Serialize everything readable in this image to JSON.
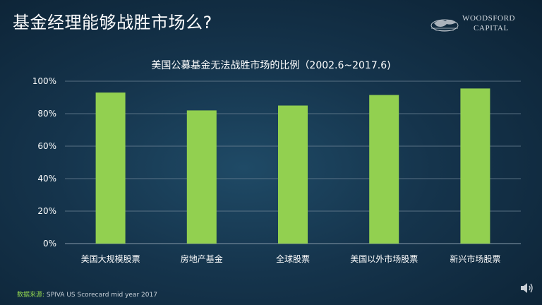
{
  "slide": {
    "title": "基金经理能够战胜市场么?"
  },
  "logo": {
    "line1": "WOODSFORD",
    "line2": "CAPITAL"
  },
  "source": {
    "label": "数据来源:",
    "text": "SPIVA  US Scorecard  mid  year 2017"
  },
  "colors": {
    "bar": "#92d050",
    "grid": "#6f8596",
    "axis_text": "#ffffff"
  },
  "chart_data": {
    "type": "bar",
    "title": "美国公募基金无法战胜市场的比例（2002.6~2017.6)",
    "categories": [
      "美国大规模股票",
      "房地产基金",
      "全球股票",
      "美国以外市场股票",
      "新兴市场股票"
    ],
    "values": [
      93,
      82,
      85,
      91.5,
      95.5
    ],
    "ylim": [
      0,
      100
    ],
    "yticks": [
      "0%",
      "20%",
      "40%",
      "60%",
      "80%",
      "100%"
    ],
    "grid": true,
    "legend": "none"
  }
}
